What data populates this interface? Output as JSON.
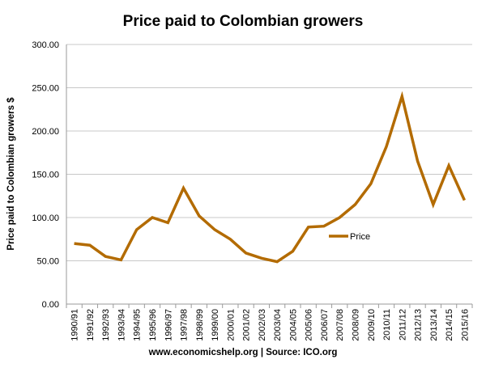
{
  "chart_data": {
    "type": "line",
    "title": "Price paid to Colombian growers",
    "xlabel": "",
    "ylabel": "Price paid to Colombian growers $",
    "source": "www.economicshelp.org | Source: ICO.org",
    "ylim": [
      0,
      300
    ],
    "yticks": [
      "0.00",
      "50.00",
      "100.00",
      "150.00",
      "200.00",
      "250.00",
      "300.00"
    ],
    "grid": true,
    "legend_position": "center-right",
    "categories": [
      "1990/91",
      "1991/92",
      "1992/93",
      "1993/94",
      "1994/95",
      "1995/96",
      "1996/97",
      "1997/98",
      "1998/99",
      "1999/00",
      "2000/01",
      "2001/02",
      "2002/03",
      "2003/04",
      "2004/05",
      "2005/06",
      "2006/07",
      "2007/08",
      "2008/09",
      "2009/10",
      "2010/11",
      "2011/12",
      "2012/13",
      "2013/14",
      "2014/15",
      "2015/16"
    ],
    "series": [
      {
        "name": "Price",
        "color": "#b36b00",
        "values": [
          70,
          68,
          55,
          51,
          86,
          100,
          94,
          134,
          102,
          86,
          75,
          59,
          53,
          49,
          61,
          89,
          90,
          100,
          115,
          139,
          182,
          240,
          165,
          115,
          160,
          120
        ]
      }
    ]
  }
}
